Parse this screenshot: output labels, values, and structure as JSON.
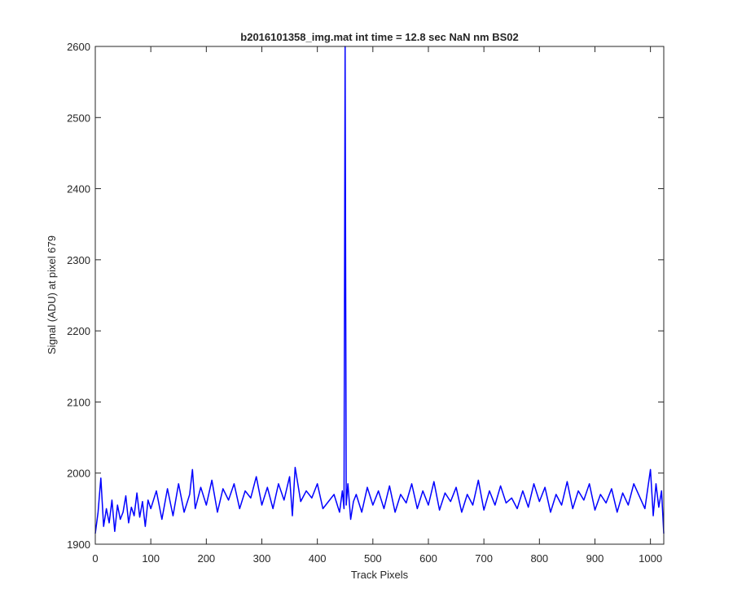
{
  "chart_data": {
    "type": "line",
    "title": "b2016101358_img.mat int time = 12.8 sec  NaN nm BS02",
    "xlabel": "Track Pixels",
    "ylabel": "Signal (ADU) at pixel 679",
    "xlim": [
      0,
      1024
    ],
    "ylim": [
      1900,
      2600
    ],
    "xticks": [
      0,
      100,
      200,
      300,
      400,
      500,
      600,
      700,
      800,
      900,
      1000
    ],
    "yticks": [
      1900,
      2000,
      2100,
      2200,
      2300,
      2400,
      2500,
      2600
    ],
    "line_color": "#0000ff",
    "grid": false,
    "series": [
      {
        "x": [
          0,
          5,
          10,
          15,
          20,
          25,
          30,
          35,
          40,
          45,
          50,
          55,
          60,
          65,
          70,
          75,
          80,
          85,
          90,
          95,
          100,
          110,
          120,
          130,
          140,
          150,
          160,
          170,
          175,
          180,
          190,
          200,
          210,
          220,
          230,
          240,
          250,
          260,
          270,
          280,
          290,
          300,
          310,
          320,
          330,
          340,
          350,
          355,
          360,
          370,
          380,
          390,
          400,
          410,
          420,
          430,
          440,
          445,
          448,
          450,
          452,
          455,
          460,
          465,
          470,
          480,
          490,
          500,
          510,
          520,
          530,
          540,
          550,
          560,
          570,
          580,
          590,
          600,
          610,
          620,
          630,
          640,
          650,
          660,
          670,
          680,
          690,
          700,
          710,
          720,
          730,
          740,
          750,
          760,
          770,
          780,
          790,
          800,
          810,
          820,
          830,
          840,
          850,
          860,
          870,
          880,
          890,
          900,
          910,
          920,
          930,
          940,
          950,
          960,
          970,
          990,
          1000,
          1005,
          1010,
          1015,
          1020,
          1024
        ],
        "y": [
          1915,
          1945,
          1993,
          1925,
          1950,
          1930,
          1962,
          1918,
          1955,
          1935,
          1945,
          1968,
          1930,
          1952,
          1940,
          1972,
          1938,
          1960,
          1925,
          1962,
          1950,
          1975,
          1935,
          1978,
          1940,
          1985,
          1945,
          1970,
          2005,
          1950,
          1980,
          1955,
          1990,
          1945,
          1978,
          1962,
          1985,
          1950,
          1975,
          1965,
          1995,
          1955,
          1980,
          1950,
          1985,
          1962,
          1995,
          1940,
          2008,
          1960,
          1975,
          1965,
          1985,
          1950,
          1960,
          1970,
          1945,
          1975,
          1950,
          2600,
          1955,
          1985,
          1935,
          1960,
          1970,
          1945,
          1980,
          1955,
          1975,
          1950,
          1982,
          1945,
          1970,
          1958,
          1985,
          1950,
          1975,
          1955,
          1988,
          1948,
          1972,
          1960,
          1980,
          1945,
          1970,
          1955,
          1990,
          1948,
          1975,
          1955,
          1982,
          1958,
          1965,
          1950,
          1975,
          1952,
          1985,
          1960,
          1980,
          1945,
          1970,
          1955,
          1988,
          1950,
          1975,
          1962,
          1985,
          1948,
          1970,
          1958,
          1978,
          1945,
          1972,
          1955,
          1985,
          1950,
          2005,
          1940,
          1985,
          1952,
          1975,
          1915
        ]
      }
    ]
  }
}
